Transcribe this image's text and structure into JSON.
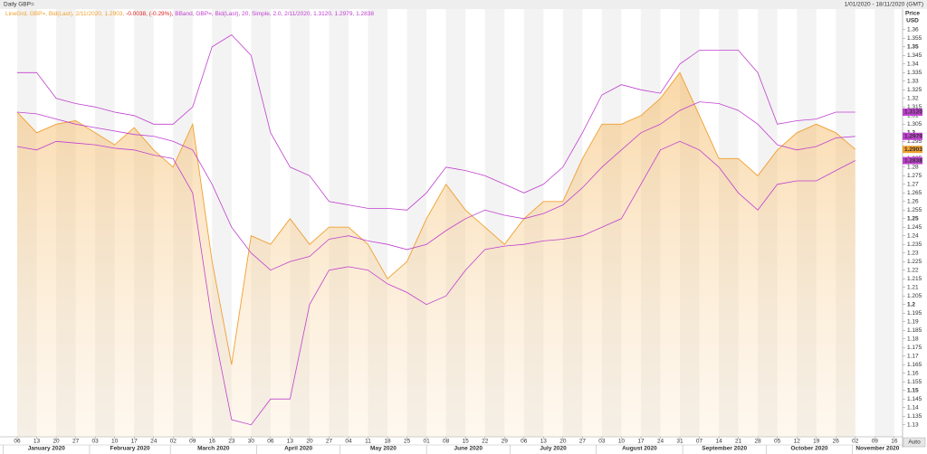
{
  "chart_data": {
    "type": "line",
    "title": "Daily GBP=",
    "date_range": "1/01/2020 - 18/11/2020 (GMT)",
    "axis_title": "Price",
    "axis_unit": "USD",
    "auto_button": "Auto",
    "legend": [
      {
        "text": "LineGrd, GBP=, Bid(Last), 2/11/2020, 1.2903, ",
        "color": "#f0a030"
      },
      {
        "text": "-0.0038, (-0.29%), ",
        "color": "#e02020"
      },
      {
        "text": "BBand, GBP=, Bid(Last),  20, Simple, 2.0, 2/11/2020, 1.3120, 1.2979, 1.2838",
        "color": "#c040d0"
      }
    ],
    "months": [
      "January 2020",
      "February 2020",
      "March 2020",
      "April 2020",
      "May 2020",
      "June 2020",
      "July 2020",
      "August 2020",
      "September 2020",
      "October 2020",
      "November 2020"
    ],
    "categories": [
      "06",
      "13",
      "20",
      "27",
      "03",
      "10",
      "17",
      "24",
      "02",
      "09",
      "16",
      "23",
      "30",
      "06",
      "13",
      "20",
      "27",
      "04",
      "11",
      "18",
      "25",
      "01",
      "08",
      "15",
      "22",
      "29",
      "06",
      "13",
      "20",
      "27",
      "03",
      "10",
      "17",
      "24",
      "31",
      "07",
      "14",
      "21",
      "28",
      "05",
      "12",
      "19",
      "26",
      "02",
      "09",
      "16"
    ],
    "ylim": [
      1.123,
      1.372
    ],
    "yticks": [
      1.13,
      1.135,
      1.14,
      1.145,
      1.15,
      1.155,
      1.16,
      1.165,
      1.17,
      1.175,
      1.18,
      1.185,
      1.19,
      1.195,
      1.2,
      1.205,
      1.21,
      1.215,
      1.22,
      1.225,
      1.23,
      1.235,
      1.24,
      1.245,
      1.25,
      1.255,
      1.26,
      1.265,
      1.27,
      1.275,
      1.28,
      1.285,
      1.29,
      1.295,
      1.3,
      1.305,
      1.31,
      1.315,
      1.32,
      1.325,
      1.33,
      1.335,
      1.34,
      1.345,
      1.35,
      1.355,
      1.36
    ],
    "series": [
      {
        "name": "LineGrd",
        "color": "#f0a030",
        "fill": true,
        "values": [
          1.312,
          1.3,
          1.305,
          1.307,
          1.3,
          1.293,
          1.303,
          1.29,
          1.28,
          1.305,
          1.225,
          1.165,
          1.24,
          1.235,
          1.25,
          1.235,
          1.245,
          1.245,
          1.235,
          1.215,
          1.225,
          1.25,
          1.27,
          1.255,
          1.245,
          1.235,
          1.25,
          1.26,
          1.26,
          1.285,
          1.305,
          1.305,
          1.31,
          1.32,
          1.335,
          1.31,
          1.285,
          1.285,
          1.275,
          1.29,
          1.3,
          1.305,
          1.3,
          1.2903,
          null,
          null
        ],
        "value_labels": [
          null,
          null,
          null,
          null,
          null,
          null,
          null,
          null,
          null,
          null,
          null,
          null,
          null,
          null,
          null,
          null,
          null,
          null,
          null,
          null,
          null,
          null,
          null,
          null,
          null,
          null,
          null,
          null,
          null,
          null,
          null,
          null,
          null,
          null,
          null,
          null,
          null,
          null,
          null,
          null,
          null,
          null,
          null,
          "1.2903",
          null,
          null
        ]
      },
      {
        "name": "BBand Upper",
        "color": "#c040d0",
        "fill": false,
        "values": [
          1.335,
          1.335,
          1.32,
          1.317,
          1.315,
          1.312,
          1.31,
          1.305,
          1.305,
          1.315,
          1.35,
          1.357,
          1.345,
          1.3,
          1.28,
          1.275,
          1.26,
          1.258,
          1.256,
          1.256,
          1.255,
          1.265,
          1.28,
          1.278,
          1.275,
          1.27,
          1.265,
          1.27,
          1.28,
          1.3,
          1.322,
          1.328,
          1.325,
          1.323,
          1.34,
          1.348,
          1.348,
          1.348,
          1.335,
          1.305,
          1.307,
          1.308,
          1.312,
          1.312,
          null,
          null
        ],
        "value_labels": [
          null,
          null,
          null,
          null,
          null,
          null,
          null,
          null,
          null,
          null,
          null,
          null,
          null,
          null,
          null,
          null,
          null,
          null,
          null,
          null,
          null,
          null,
          null,
          null,
          null,
          null,
          null,
          null,
          null,
          null,
          null,
          null,
          null,
          null,
          null,
          null,
          null,
          null,
          null,
          null,
          null,
          null,
          null,
          "1.3120",
          null,
          null
        ]
      },
      {
        "name": "BBand Middle",
        "color": "#c040d0",
        "fill": false,
        "values": [
          1.312,
          1.311,
          1.308,
          1.305,
          1.303,
          1.301,
          1.299,
          1.298,
          1.295,
          1.29,
          1.27,
          1.245,
          1.23,
          1.22,
          1.225,
          1.228,
          1.238,
          1.24,
          1.237,
          1.235,
          1.232,
          1.235,
          1.243,
          1.25,
          1.255,
          1.252,
          1.25,
          1.253,
          1.258,
          1.268,
          1.28,
          1.29,
          1.3,
          1.305,
          1.313,
          1.318,
          1.317,
          1.313,
          1.305,
          1.293,
          1.29,
          1.292,
          1.297,
          1.2979,
          null,
          null
        ],
        "value_labels": [
          null,
          null,
          null,
          null,
          null,
          null,
          null,
          null,
          null,
          null,
          null,
          null,
          null,
          null,
          null,
          null,
          null,
          null,
          null,
          null,
          null,
          null,
          null,
          null,
          null,
          null,
          null,
          null,
          null,
          null,
          null,
          null,
          null,
          null,
          null,
          null,
          null,
          null,
          null,
          null,
          null,
          null,
          null,
          "1.2979",
          null,
          null
        ]
      },
      {
        "name": "BBand Lower",
        "color": "#c040d0",
        "fill": false,
        "values": [
          1.292,
          1.29,
          1.295,
          1.294,
          1.293,
          1.291,
          1.29,
          1.287,
          1.285,
          1.265,
          1.19,
          1.133,
          1.13,
          1.145,
          1.145,
          1.2,
          1.22,
          1.222,
          1.22,
          1.212,
          1.207,
          1.2,
          1.205,
          1.22,
          1.232,
          1.234,
          1.235,
          1.237,
          1.238,
          1.24,
          1.245,
          1.25,
          1.27,
          1.29,
          1.295,
          1.29,
          1.28,
          1.265,
          1.255,
          1.27,
          1.272,
          1.272,
          1.278,
          1.2838,
          null,
          null
        ],
        "value_labels": [
          null,
          null,
          null,
          null,
          null,
          null,
          null,
          null,
          null,
          null,
          null,
          null,
          null,
          null,
          null,
          null,
          null,
          null,
          null,
          null,
          null,
          null,
          null,
          null,
          null,
          null,
          null,
          null,
          null,
          null,
          null,
          null,
          null,
          null,
          null,
          null,
          null,
          null,
          null,
          null,
          null,
          null,
          null,
          "1.2838",
          null,
          null
        ]
      }
    ]
  }
}
